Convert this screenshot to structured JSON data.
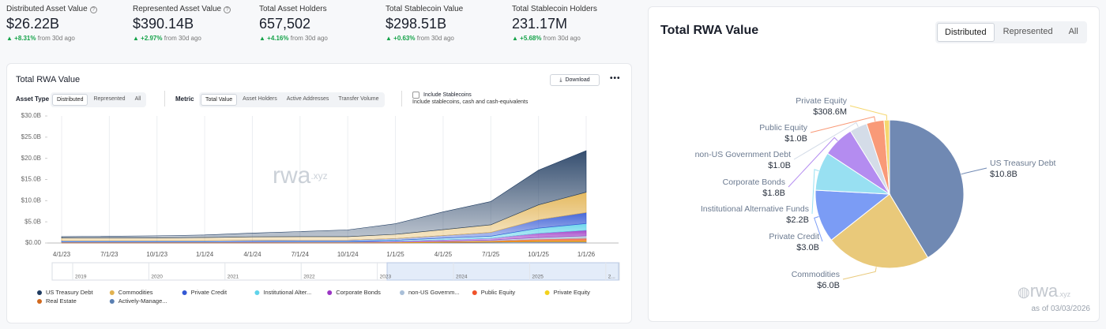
{
  "stats": [
    {
      "label": "Distributed Asset Value",
      "value": "$26.22B",
      "change": "+8.31%",
      "note": "from 30d ago"
    },
    {
      "label": "Represented Asset Value",
      "value": "$390.14B",
      "change": "+2.97%",
      "note": "from 30d ago"
    },
    {
      "label": "Total Asset Holders",
      "value": "657,502",
      "change": "+4.16%",
      "note": "from 30d ago"
    },
    {
      "label": "Total Stablecoin Value",
      "value": "$298.51B",
      "change": "+0.63%",
      "note": "from 30d ago"
    },
    {
      "label": "Total Stablecoin Holders",
      "value": "231.17M",
      "change": "+5.68%",
      "note": "from 30d ago"
    }
  ],
  "filters": {
    "asset_type_label": "Asset Type",
    "asset_types": [
      "Distributed",
      "Represented",
      "All"
    ],
    "metric_label": "Metric",
    "metrics": [
      "Total Value",
      "Asset Holders",
      "Active Addresses",
      "Transfer Volume"
    ],
    "stablecoin_toggle": "Include Stablecoins",
    "stablecoin_note": "Include stablecoins, cash and cash-equivalents",
    "download": "Download"
  },
  "chart_data": [
    {
      "type": "area",
      "stacked": true,
      "title": "Total RWA Value",
      "x": [
        "4/1/23",
        "7/1/23",
        "10/1/23",
        "1/1/24",
        "4/1/24",
        "7/1/24",
        "10/1/24",
        "1/1/25",
        "4/1/25",
        "7/1/25",
        "10/1/25",
        "1/1/26"
      ],
      "series": [
        {
          "name": "US Treasury Debt",
          "color": "#1f3b60",
          "values": [
            0.3,
            0.4,
            0.5,
            0.6,
            0.9,
            1.2,
            1.6,
            2.5,
            4.2,
            5.5,
            8.2,
            9.8
          ]
        },
        {
          "name": "Commodities",
          "color": "#e2b24f",
          "values": [
            0.6,
            0.6,
            0.6,
            0.7,
            0.8,
            0.8,
            0.8,
            1.0,
            1.4,
            1.8,
            3.5,
            4.8
          ]
        },
        {
          "name": "Private Credit",
          "color": "#3358d4",
          "values": [
            0.3,
            0.3,
            0.3,
            0.3,
            0.3,
            0.3,
            0.3,
            0.4,
            0.6,
            0.9,
            2.0,
            2.6
          ]
        },
        {
          "name": "Institutional Alter...",
          "color": "#5fd3ea",
          "values": [
            0.05,
            0.05,
            0.05,
            0.05,
            0.05,
            0.1,
            0.1,
            0.2,
            0.4,
            0.5,
            1.2,
            1.6
          ]
        },
        {
          "name": "Corporate Bonds",
          "color": "#9b35c4",
          "values": [
            0.05,
            0.05,
            0.05,
            0.05,
            0.1,
            0.1,
            0.1,
            0.2,
            0.3,
            0.4,
            1.0,
            1.3
          ]
        },
        {
          "name": "non-US Governm...",
          "color": "#a9bfd8",
          "values": [
            0.05,
            0.05,
            0.05,
            0.05,
            0.05,
            0.05,
            0.05,
            0.05,
            0.1,
            0.2,
            0.4,
            0.6
          ]
        },
        {
          "name": "Public Equity",
          "color": "#f0522a",
          "values": [
            0,
            0,
            0,
            0,
            0,
            0,
            0,
            0,
            0.05,
            0.1,
            0.3,
            0.5
          ]
        },
        {
          "name": "Private Equity",
          "color": "#f3d21c",
          "values": [
            0.05,
            0.05,
            0.05,
            0.05,
            0.05,
            0.05,
            0.05,
            0.1,
            0.1,
            0.1,
            0.2,
            0.2
          ]
        },
        {
          "name": "Real Estate",
          "color": "#d2691e",
          "values": [
            0.1,
            0.1,
            0.1,
            0.1,
            0.1,
            0.1,
            0.1,
            0.1,
            0.1,
            0.1,
            0.1,
            0.1
          ]
        },
        {
          "name": "Actively-Manage...",
          "color": "#5a7fb2",
          "values": [
            0,
            0,
            0,
            0,
            0,
            0,
            0,
            0,
            0.1,
            0.2,
            0.3,
            0.3
          ]
        }
      ],
      "ylim": [
        0,
        30
      ],
      "yticks": [
        {
          "value": 0,
          "label": "$0.00"
        },
        {
          "value": 5,
          "label": "$5.0B"
        },
        {
          "value": 10,
          "label": "$10.0B"
        },
        {
          "value": 15,
          "label": "$15.0B"
        },
        {
          "value": 20,
          "label": "$20.0B"
        },
        {
          "value": 25,
          "label": "$25.0B"
        },
        {
          "value": 30,
          "label": "$30.0B"
        }
      ],
      "grid": true,
      "watermark": "rwa",
      "watermark_suffix": ".xyz",
      "navigator_labels": [
        "2019",
        "2020",
        "2021",
        "2022",
        "2023",
        "2024",
        "2025",
        "2..."
      ]
    },
    {
      "type": "pie",
      "title": "Total RWA Value",
      "tabs": [
        "Distributed",
        "Represented",
        "All"
      ],
      "categories": [
        "US Treasury Debt",
        "Commodities",
        "Private Credit",
        "Institutional Alternative Funds",
        "Corporate Bonds",
        "non-US Government Debt",
        "Public Equity",
        "Private Equity"
      ],
      "values": [
        10.8,
        6.0,
        3.0,
        2.2,
        1.8,
        1.0,
        1.0,
        0.3086
      ],
      "value_labels": [
        "$10.8B",
        "$6.0B",
        "$3.0B",
        "$2.2B",
        "$1.8B",
        "$1.0B",
        "$1.0B",
        "$308.6M"
      ],
      "colors": [
        "#7089b3",
        "#e9c97a",
        "#7b9cf5",
        "#98e0f2",
        "#b48cf0",
        "#d4dce8",
        "#f99a78",
        "#f5d76e"
      ],
      "watermark": "rwa",
      "watermark_suffix": ".xyz",
      "footnote": "as of 03/03/2026"
    }
  ]
}
